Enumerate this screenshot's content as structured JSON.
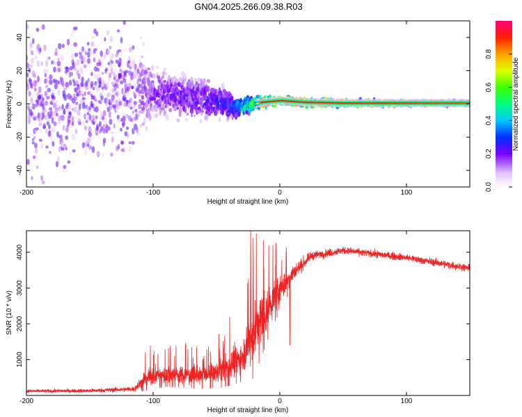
{
  "title": "GN04.2025.266.09.38.R03",
  "chart_data": [
    {
      "type": "heatmap",
      "name": "spectrogram",
      "xlabel": "Height of straight line (km)",
      "ylabel": "Frequency (Hz)",
      "xlim": [
        -200,
        150
      ],
      "ylim": [
        -50,
        50
      ],
      "x_ticks": [
        -200,
        -100,
        0,
        100
      ],
      "y_ticks": [
        -40,
        -20,
        0,
        20,
        40
      ],
      "colorbar": {
        "label": "Normalized spectral amplitude",
        "range": [
          0,
          1
        ],
        "ticks": [
          0.0,
          0.2,
          0.4,
          0.6,
          0.8
        ]
      },
      "center_frequency_track": [
        {
          "x": -200,
          "f": 2
        },
        {
          "x": -150,
          "f": 6
        },
        {
          "x": -110,
          "f": 8
        },
        {
          "x": -90,
          "f": 6
        },
        {
          "x": -70,
          "f": 4
        },
        {
          "x": -50,
          "f": 2
        },
        {
          "x": -35,
          "f": -2
        },
        {
          "x": -25,
          "f": -1
        },
        {
          "x": -15,
          "f": 1
        },
        {
          "x": 0,
          "f": 2
        },
        {
          "x": 20,
          "f": 1
        },
        {
          "x": 50,
          "f": 0.5
        },
        {
          "x": 100,
          "f": 0.5
        },
        {
          "x": 150,
          "f": 0.5
        }
      ],
      "spread_hz": [
        {
          "x": -200,
          "s": 50
        },
        {
          "x": -120,
          "s": 40
        },
        {
          "x": -100,
          "s": 15
        },
        {
          "x": -60,
          "s": 12
        },
        {
          "x": -40,
          "s": 8
        },
        {
          "x": -20,
          "s": 4
        },
        {
          "x": 0,
          "s": 2.5
        },
        {
          "x": 150,
          "s": 1.2
        }
      ],
      "peak_amplitude": [
        {
          "x": -200,
          "a": 0.08
        },
        {
          "x": -120,
          "a": 0.12
        },
        {
          "x": -100,
          "a": 0.18
        },
        {
          "x": -60,
          "a": 0.22
        },
        {
          "x": -40,
          "a": 0.28
        },
        {
          "x": -20,
          "a": 0.6
        },
        {
          "x": -15,
          "a": 0.95
        },
        {
          "x": 0,
          "a": 0.9
        },
        {
          "x": 20,
          "a": 0.92
        },
        {
          "x": 150,
          "a": 0.88
        }
      ]
    },
    {
      "type": "line",
      "name": "snr",
      "xlabel": "Height of straight line (km)",
      "ylabel": "SNR (10 * v/v)",
      "xlim": [
        -200,
        150
      ],
      "ylim": [
        0,
        4600
      ],
      "x_ticks": [
        -200,
        -100,
        0,
        100
      ],
      "y_ticks": [
        1000,
        2000,
        3000,
        4000
      ],
      "color": "#ee2222",
      "series": [
        {
          "name": "SNR",
          "envelope": [
            {
              "x": -200,
              "mean": 120,
              "noise": 60
            },
            {
              "x": -150,
              "mean": 130,
              "noise": 70
            },
            {
              "x": -115,
              "mean": 180,
              "noise": 90
            },
            {
              "x": -105,
              "mean": 500,
              "noise": 300
            },
            {
              "x": -90,
              "mean": 600,
              "noise": 300
            },
            {
              "x": -60,
              "mean": 550,
              "noise": 300
            },
            {
              "x": -45,
              "mean": 700,
              "noise": 400
            },
            {
              "x": -30,
              "mean": 1100,
              "noise": 600
            },
            {
              "x": -22,
              "mean": 1600,
              "noise": 1000
            },
            {
              "x": -15,
              "mean": 2100,
              "noise": 900
            },
            {
              "x": -5,
              "mean": 2700,
              "noise": 600
            },
            {
              "x": 10,
              "mean": 3400,
              "noise": 300
            },
            {
              "x": 25,
              "mean": 3900,
              "noise": 150
            },
            {
              "x": 50,
              "mean": 4050,
              "noise": 130
            },
            {
              "x": 100,
              "mean": 3850,
              "noise": 130
            },
            {
              "x": 150,
              "mean": 3550,
              "noise": 130
            }
          ],
          "spikes": [
            {
              "x": -23,
              "y": 4600
            },
            {
              "x": -21,
              "y": 4400
            },
            {
              "x": -3,
              "y": 4250
            },
            {
              "x": 8,
              "y": 1400
            }
          ]
        }
      ]
    }
  ]
}
